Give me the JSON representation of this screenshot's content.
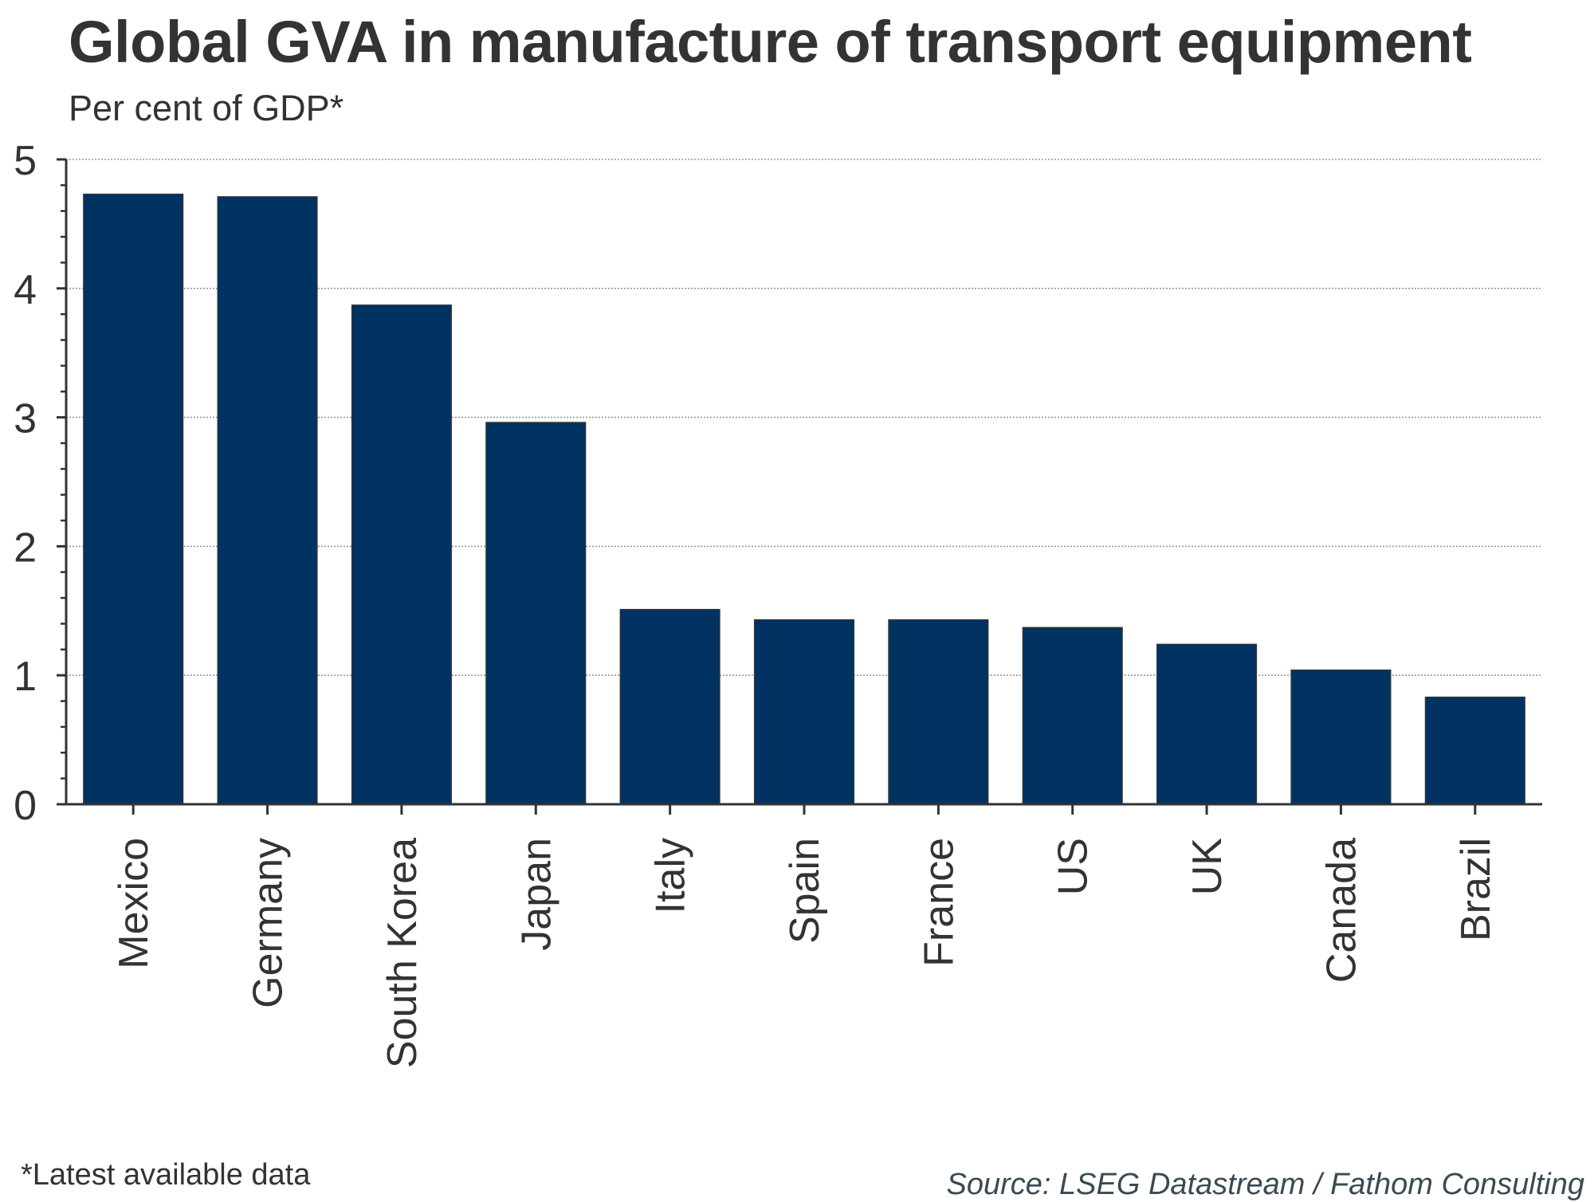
{
  "header": {
    "title": "Global GVA in manufacture of transport equipment",
    "subtitle": "Per cent of GDP*"
  },
  "footer": {
    "footnote": "*Latest available data",
    "source": "Source: LSEG Datastream / Fathom Consulting"
  },
  "colors": {
    "bar": "#003262",
    "bar_edge": "#2b3440",
    "axis": "#333333",
    "grid": "#999999"
  },
  "chart_data": {
    "type": "bar",
    "title": "Global GVA in manufacture of transport equipment",
    "subtitle": "Per cent of GDP*",
    "xlabel": "",
    "ylabel": "Per cent of GDP*",
    "categories": [
      "Mexico",
      "Germany",
      "South Korea",
      "Japan",
      "Italy",
      "Spain",
      "France",
      "US",
      "UK",
      "Canada",
      "Brazil"
    ],
    "values": [
      4.73,
      4.71,
      3.87,
      2.96,
      1.51,
      1.43,
      1.43,
      1.37,
      1.24,
      1.04,
      0.83
    ],
    "ylim": [
      0,
      5
    ],
    "yticks": [
      0,
      1,
      2,
      3,
      4,
      5
    ],
    "ytick_labels": [
      "0",
      "1",
      "2",
      "3",
      "4",
      "5"
    ],
    "minor_yticks_per_major": 5,
    "grid": "horizontal dotted at major ticks",
    "legend": "none",
    "category_label_orientation": "vertical"
  }
}
